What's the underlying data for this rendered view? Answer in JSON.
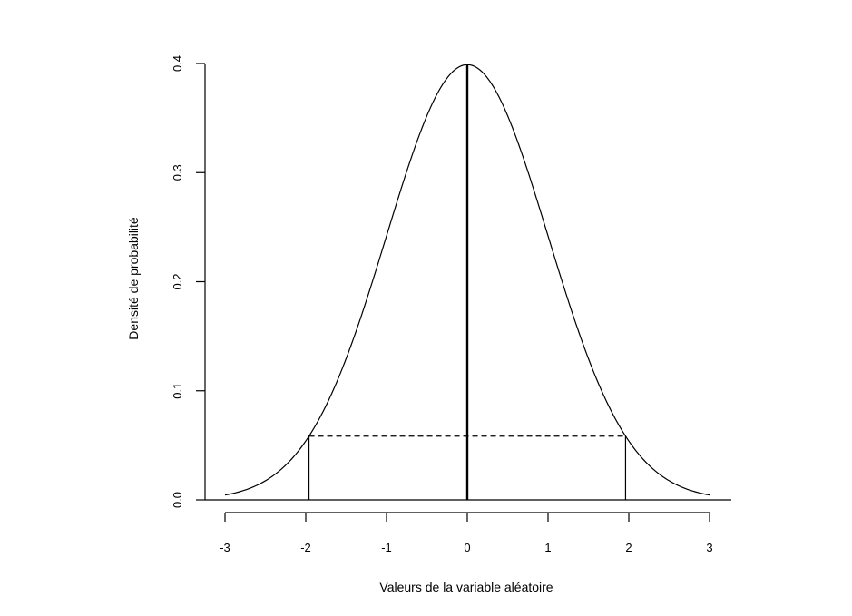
{
  "chart_data": {
    "type": "line",
    "xlabel": "Valeurs de la variable aléatoire",
    "ylabel": "Densité de probabilité",
    "xlim": [
      -3,
      3
    ],
    "ylim": [
      0,
      0.4
    ],
    "x_ticks": [
      -3,
      -2,
      -1,
      0,
      1,
      2,
      3
    ],
    "x_tick_labels": [
      "-3",
      "-2",
      "-1",
      "0",
      "1",
      "2",
      "3"
    ],
    "y_ticks": [
      0.0,
      0.1,
      0.2,
      0.3,
      0.4
    ],
    "y_tick_labels": [
      "0.0",
      "0.1",
      "0.2",
      "0.3",
      "0.4"
    ],
    "grid": false,
    "series": [
      {
        "x": [
          -3,
          -2.75,
          -2.5,
          -2.25,
          -2,
          -1.75,
          -1.5,
          -1.25,
          -1,
          -0.75,
          -0.5,
          -0.25,
          0,
          0.25,
          0.5,
          0.75,
          1,
          1.25,
          1.5,
          1.75,
          2,
          2.25,
          2.5,
          2.75,
          3
        ],
        "y": [
          0.0044,
          0.0091,
          0.0175,
          0.0317,
          0.054,
          0.0863,
          0.1295,
          0.1826,
          0.242,
          0.3011,
          0.3521,
          0.3867,
          0.3989,
          0.3867,
          0.3521,
          0.3011,
          0.242,
          0.1826,
          0.1295,
          0.0863,
          0.054,
          0.0317,
          0.0175,
          0.0091,
          0.0044
        ]
      }
    ],
    "annotations": {
      "mean_line": {
        "x": 0,
        "y_from": 0,
        "y_to": 0.3989
      },
      "bound_lines": [
        {
          "x": -1.96,
          "y_from": 0,
          "y_to": 0.0584
        },
        {
          "x": 1.96,
          "y_from": 0,
          "y_to": 0.0584
        }
      ],
      "dashed_line": {
        "x_from": -1.96,
        "x_to": 1.96,
        "y": 0.0584
      }
    }
  }
}
